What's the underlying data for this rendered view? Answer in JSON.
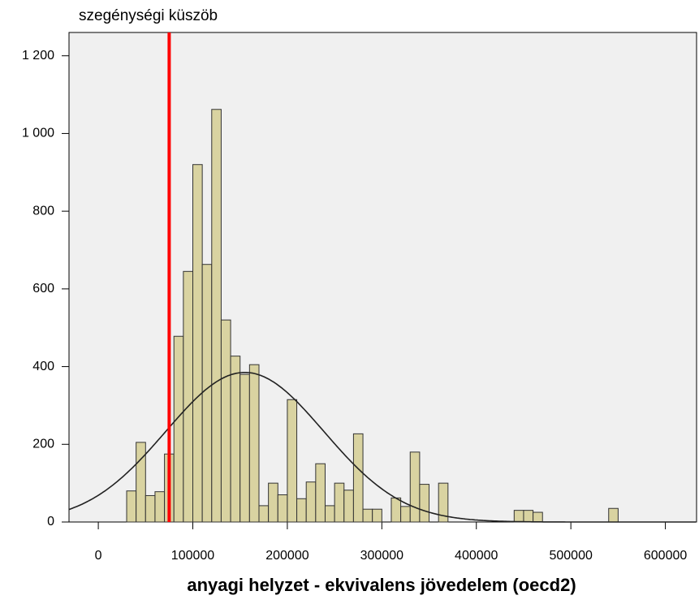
{
  "chart_data": {
    "type": "histogram",
    "annotation": "szegénységi küszöb",
    "threshold": 75000,
    "threshold_color": "#ff0000",
    "x_label": "anyagi helyzet - ekvivalens jövedelem (oecd2)",
    "bins": [
      30000,
      40000,
      50000,
      60000,
      70000,
      80000,
      90000,
      100000,
      110000,
      120000,
      130000,
      140000,
      150000,
      160000,
      170000,
      180000,
      190000,
      200000,
      210000,
      220000,
      230000,
      240000,
      250000,
      260000,
      270000,
      280000,
      290000,
      300000,
      310000,
      320000,
      330000,
      340000,
      350000,
      360000,
      370000,
      380000,
      390000,
      400000,
      410000,
      420000,
      430000,
      440000,
      450000,
      460000,
      470000,
      480000,
      490000,
      500000,
      510000,
      520000,
      530000,
      540000,
      550000
    ],
    "counts": [
      80,
      205,
      68,
      78,
      175,
      478,
      645,
      920,
      663,
      1062,
      520,
      427,
      380,
      405,
      42,
      100,
      70,
      315,
      60,
      103,
      150,
      42,
      100,
      82,
      227,
      33,
      33,
      0,
      62,
      40,
      180,
      97,
      0,
      100,
      0,
      0,
      0,
      0,
      0,
      0,
      0,
      30,
      30,
      25,
      0,
      0,
      0,
      0,
      0,
      0,
      0,
      35
    ],
    "color": "#d9d3a1",
    "fit_curve": {
      "mean": 155000,
      "sd": 83500,
      "peak": 385
    },
    "xlim": [
      -31000,
      633000
    ],
    "ylim": [
      0,
      1260
    ],
    "xticks": [
      0,
      100000,
      200000,
      300000,
      400000,
      500000,
      600000
    ],
    "yticks": [
      0,
      200,
      400,
      600,
      800,
      {
        "value": 1000,
        "label": "1 000"
      },
      {
        "value": 1200,
        "label": "1 200"
      }
    ]
  }
}
